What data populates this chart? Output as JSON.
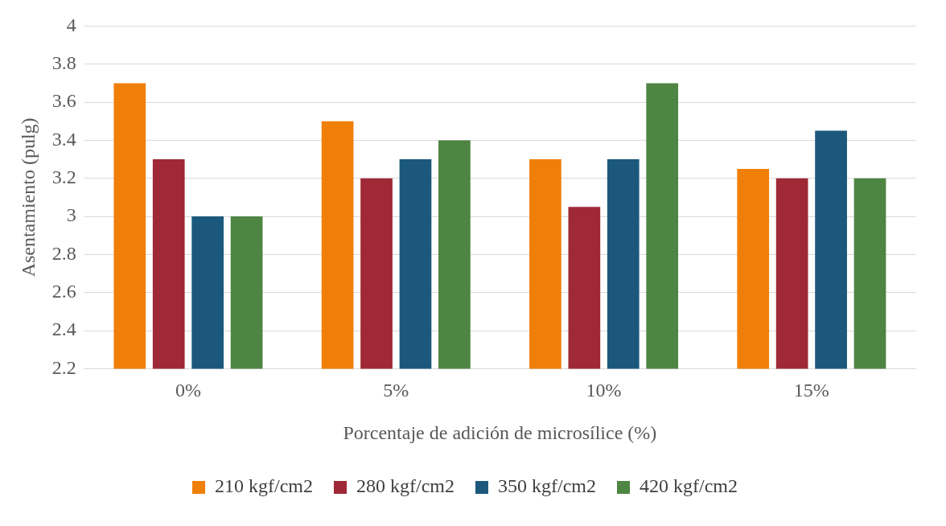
{
  "chart_data": {
    "type": "bar",
    "xlabel": "Porcentaje de adición de microsílice (%)",
    "ylabel": "Asentamiento (pulg)",
    "categories": [
      "0%",
      "5%",
      "10%",
      "15%"
    ],
    "series": [
      {
        "name": "210 kgf/cm2",
        "color": "#f07f09",
        "values": [
          3.7,
          3.5,
          3.3,
          3.25
        ]
      },
      {
        "name": "280 kgf/cm2",
        "color": "#9f2936",
        "values": [
          3.3,
          3.2,
          3.05,
          3.2
        ]
      },
      {
        "name": "350 kgf/cm2",
        "color": "#1b587c",
        "values": [
          3.0,
          3.3,
          3.3,
          3.45
        ]
      },
      {
        "name": "420 kgf/cm2",
        "color": "#4e8542",
        "values": [
          3.0,
          3.4,
          3.7,
          3.2
        ]
      }
    ],
    "ylim": [
      2.2,
      4
    ],
    "yticks": [
      2.2,
      2.4,
      2.6,
      2.8,
      3,
      3.2,
      3.4,
      3.6,
      3.8,
      4
    ],
    "grid": "y",
    "legend": "bottom"
  }
}
